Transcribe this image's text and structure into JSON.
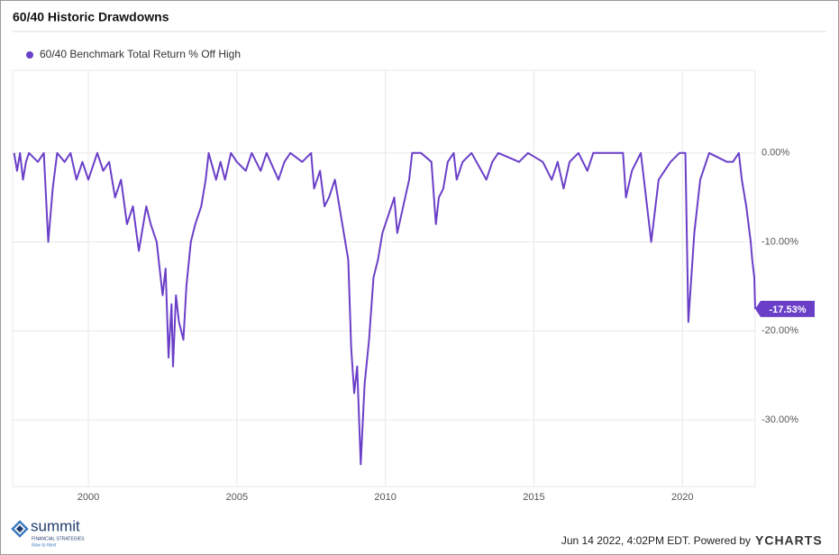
{
  "chart_data": {
    "type": "line",
    "title": "60/40 Historic Drawdowns",
    "x": [
      1997.5,
      1997.6,
      1997.7,
      1997.8,
      1997.9,
      1998.0,
      1998.3,
      1998.5,
      1998.65,
      1998.8,
      1998.95,
      1999.2,
      1999.4,
      1999.6,
      1999.8,
      2000.0,
      2000.2,
      2000.3,
      2000.5,
      2000.7,
      2000.9,
      2001.1,
      2001.3,
      2001.5,
      2001.7,
      2001.8,
      2001.95,
      2002.1,
      2002.3,
      2002.5,
      2002.6,
      2002.7,
      2002.8,
      2002.85,
      2002.95,
      2003.05,
      2003.2,
      2003.3,
      2003.45,
      2003.6,
      2003.8,
      2003.95,
      2004.05,
      2004.3,
      2004.45,
      2004.6,
      2004.8,
      2005.0,
      2005.3,
      2005.5,
      2005.8,
      2006.0,
      2006.4,
      2006.6,
      2006.8,
      2007.2,
      2007.5,
      2007.6,
      2007.8,
      2007.95,
      2008.1,
      2008.3,
      2008.5,
      2008.65,
      2008.75,
      2008.85,
      2008.95,
      2009.05,
      2009.17,
      2009.3,
      2009.45,
      2009.6,
      2009.75,
      2009.9,
      2010.1,
      2010.3,
      2010.4,
      2010.6,
      2010.8,
      2010.9,
      2011.2,
      2011.55,
      2011.7,
      2011.8,
      2011.95,
      2012.1,
      2012.3,
      2012.4,
      2012.6,
      2012.9,
      2013.4,
      2013.6,
      2013.8,
      2014.5,
      2014.8,
      2015.3,
      2015.6,
      2015.8,
      2016.0,
      2016.2,
      2016.5,
      2016.8,
      2017.0,
      2018.0,
      2018.1,
      2018.3,
      2018.6,
      2018.95,
      2019.2,
      2019.6,
      2019.9,
      2020.1,
      2020.2,
      2020.4,
      2020.6,
      2020.9,
      2021.5,
      2021.7,
      2021.9,
      2022.0,
      2022.15,
      2022.3,
      2022.35,
      2022.42,
      2022.45
    ],
    "series": [
      {
        "name": "60/40 Benchmark Total Return % Off High",
        "color": "#6a3fc8",
        "values": [
          0,
          -2,
          0,
          -3,
          -1,
          0,
          -1,
          0,
          -10,
          -4,
          0,
          -1,
          0,
          -3,
          -1,
          -3,
          -1,
          0,
          -2,
          -1,
          -5,
          -3,
          -8,
          -6,
          -11,
          -9,
          -6,
          -8,
          -10,
          -16,
          -13,
          -23,
          -17,
          -24,
          -16,
          -19,
          -21,
          -15,
          -10,
          -8,
          -6,
          -3,
          0,
          -3,
          -1,
          -3,
          0,
          -1,
          -2,
          0,
          -2,
          0,
          -3,
          -1,
          0,
          -1,
          0,
          -4,
          -2,
          -6,
          -5,
          -3,
          -7,
          -10,
          -12,
          -22,
          -27,
          -24,
          -35,
          -26,
          -21,
          -14,
          -12,
          -9,
          -7,
          -5,
          -9,
          -6,
          -3,
          0,
          0,
          -1,
          -8,
          -5,
          -4,
          -1,
          0,
          -3,
          -1,
          0,
          -3,
          -1,
          0,
          -1,
          0,
          -1,
          -3,
          -1,
          -4,
          -1,
          0,
          -2,
          0,
          0,
          -5,
          -2,
          0,
          -10,
          -3,
          -1,
          0,
          0,
          -19,
          -9,
          -3,
          0,
          -1,
          -1,
          0,
          -3,
          -6,
          -10,
          -12,
          -14,
          -17.53
        ],
        "value_labels": [
          null,
          null,
          null,
          null,
          null,
          null,
          null,
          null,
          null,
          null,
          null,
          null,
          null,
          null,
          null,
          null,
          null,
          null,
          null,
          null,
          null,
          null,
          null,
          null,
          null,
          null,
          null,
          null,
          null,
          null,
          null,
          null,
          null,
          null,
          null,
          null,
          null,
          null,
          null,
          null,
          null,
          null,
          null,
          null,
          null,
          null,
          null,
          null,
          null,
          null,
          null,
          null,
          null,
          null,
          null,
          null,
          null,
          null,
          null,
          null,
          null,
          null,
          null,
          null,
          null,
          null,
          null,
          null,
          null,
          null,
          null,
          null,
          null,
          null,
          null,
          null,
          null,
          null,
          null,
          null,
          null,
          null,
          null,
          null,
          null,
          null,
          null,
          null,
          null,
          null,
          null,
          null,
          null,
          null,
          null,
          null,
          null,
          null,
          null,
          null,
          null,
          null,
          null,
          null,
          null,
          null,
          null,
          null,
          null,
          null,
          null,
          null,
          null,
          null,
          null,
          null,
          null,
          null,
          null,
          null,
          null,
          null,
          null,
          null,
          "-17.53%"
        ]
      }
    ],
    "xlim": [
      1997.45,
      2022.45
    ],
    "xticks": [
      2000,
      2005,
      2010,
      2015,
      2020
    ],
    "ylim": [
      -37.5,
      9.3
    ],
    "yticks": [
      {
        "value": 0,
        "label": "0.00%"
      },
      {
        "value": -10,
        "label": "-10.00%"
      },
      {
        "value": -20,
        "label": "-20.00%"
      },
      {
        "value": -30,
        "label": "-30.00%"
      }
    ],
    "grid": true,
    "legend": "top-left"
  },
  "footer": {
    "timestamp": "Jun 14 2022, 4:02PM EDT. Powered by",
    "brand": "YCHARTS",
    "logo": {
      "name": "summit",
      "tagline": "FINANCIAL STRATEGIES",
      "motto": "Now to Next"
    }
  }
}
